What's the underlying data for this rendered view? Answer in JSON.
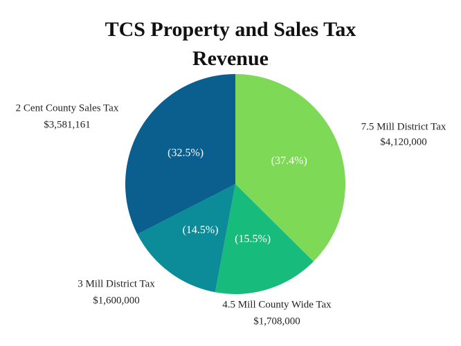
{
  "chart_data": {
    "type": "pie",
    "title": "TCS Property and Sales Tax Revenue",
    "categories": [
      "7.5 Mill District Tax",
      "4.5 Mill County Wide Tax",
      "3 Mill District Tax",
      "2 Cent County Sales Tax"
    ],
    "values": [
      4120000,
      1708000,
      1600000,
      3581161
    ],
    "value_labels": [
      "$4,120,000",
      "$1,708,000",
      "$1,600,000",
      "$3,581,161"
    ],
    "percent_labels": [
      "(37.4%)",
      "(15.5%)",
      "(14.5%)",
      "(32.5%)"
    ],
    "colors": [
      "#7ed957",
      "#17bc7d",
      "#0c8c98",
      "#0b5f8e"
    ]
  }
}
